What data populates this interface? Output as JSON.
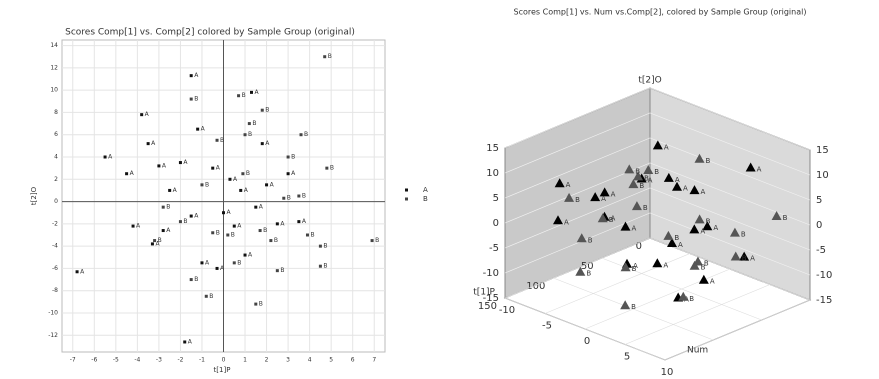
{
  "chart_data": [
    {
      "type": "scatter",
      "title": "Scores Comp[1] vs. Comp[2] colored by Sample Group (original)",
      "xlabel": "t[1]P",
      "ylabel": "t[2]O",
      "xlim": [
        -7.5,
        7.5
      ],
      "ylim": [
        -13.5,
        14.5
      ],
      "xticks": [
        -7,
        -6,
        -5,
        -4,
        -3,
        -2,
        -1,
        0,
        1,
        2,
        3,
        4,
        5,
        6,
        7
      ],
      "yticks": [
        -12,
        -10,
        -8,
        -6,
        -4,
        -2,
        0,
        2,
        4,
        6,
        8,
        10,
        12,
        14
      ],
      "grid": true,
      "legend": "right",
      "series": [
        {
          "name": "A",
          "color": "#111111",
          "x": [
            -6.8,
            -5.5,
            -4.5,
            -3.8,
            -3.5,
            -3,
            -2.5,
            -3.3,
            -2,
            -1.5,
            -1.2,
            -1.5,
            -1,
            -0.5,
            0,
            0.3,
            0.5,
            1,
            1.3,
            1.8,
            2.5,
            3,
            3.5,
            -1.8,
            -2.8,
            -0.3,
            2,
            -4.2,
            0.8,
            1.5
          ],
          "values": [
            -6.3,
            4,
            2.5,
            7.8,
            5.2,
            3.2,
            1,
            -3.8,
            3.5,
            11.3,
            6.5,
            -1.3,
            -5.5,
            3,
            -1,
            2,
            -2.2,
            -4.8,
            9.8,
            5.2,
            -2,
            2.5,
            -1.8,
            -12.6,
            -2.6,
            -6,
            1.5,
            -2.2,
            1,
            -0.5
          ]
        },
        {
          "name": "B",
          "color": "#444444",
          "x": [
            4.7,
            6.9,
            4.8,
            4.5,
            4.5,
            3.6,
            3,
            3.5,
            2.5,
            1.5,
            1.8,
            1.2,
            0.7,
            0.5,
            -0.8,
            -1.5,
            -0.3,
            0.2,
            -1,
            -2,
            -2.8,
            -1.5,
            1,
            2.2,
            3.9,
            -0.5,
            0.9,
            -3.2,
            2.8,
            1.7
          ],
          "values": [
            13,
            -3.5,
            3,
            -4,
            -5.8,
            6,
            4,
            0.5,
            -6.2,
            -9.2,
            8.2,
            7,
            9.5,
            -5.5,
            -8.5,
            -7,
            5.5,
            -3,
            1.5,
            -1.8,
            -0.5,
            9.2,
            6,
            -3.5,
            -3,
            -2.8,
            2.5,
            -3.5,
            0.3,
            -2.6
          ]
        }
      ]
    },
    {
      "type": "scatter3d",
      "title": "Scores Comp[1] vs. Num vs.Comp[2], colored by Sample Group (original)",
      "xlabel": "t[1]P",
      "ylabel": "Num",
      "zlabel": "t[2]O",
      "xlim": [
        0,
        150
      ],
      "ylim": [
        -10,
        10
      ],
      "zlim": [
        -15,
        15
      ],
      "xticks": [
        0,
        50,
        100,
        150
      ],
      "yticks": [
        -10,
        -5,
        0,
        5,
        10
      ],
      "zticks": [
        -15,
        -10,
        -5,
        0,
        5,
        10,
        15
      ],
      "series": [
        {
          "name": "A",
          "color": "#000000",
          "x": [
            20,
            30,
            40,
            50,
            60,
            70,
            80,
            90,
            100,
            110,
            35,
            55,
            75,
            95,
            120,
            45,
            65,
            85,
            105,
            25
          ],
          "y": [
            5,
            -3,
            2,
            -5,
            0,
            4,
            -6,
            -2,
            3,
            -8,
            6,
            -1,
            -4,
            5,
            -7,
            1,
            -9,
            7,
            -3,
            -6
          ],
          "z": [
            10,
            2,
            -2,
            4,
            -5,
            1,
            3,
            -8,
            -4,
            6,
            -6,
            7,
            -3,
            -10,
            0,
            5,
            -1,
            -6,
            2,
            8
          ]
        },
        {
          "name": "B",
          "color": "#555555",
          "x": [
            15,
            28,
            42,
            58,
            62,
            72,
            88,
            98,
            112,
            125,
            38,
            52,
            68,
            78,
            92,
            108,
            48,
            82,
            130,
            18
          ],
          "y": [
            -2,
            4,
            -7,
            3,
            -4,
            1,
            -1,
            6,
            -5,
            2,
            -8,
            7,
            -2,
            5,
            -9,
            0,
            2,
            -6,
            -3,
            8
          ],
          "z": [
            7,
            -3,
            1,
            -7,
            6,
            -2,
            4,
            -9,
            -3,
            -11,
            3,
            -4,
            9,
            -5,
            1,
            -6,
            0,
            -2,
            -7,
            2
          ]
        }
      ]
    }
  ]
}
